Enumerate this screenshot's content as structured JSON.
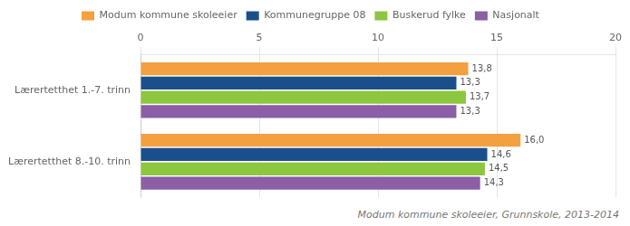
{
  "chart_data": {
    "type": "bar",
    "orientation": "horizontal",
    "categories": [
      "Lærertetthet 1.-7. trinn",
      "Lærertetthet 8.-10. trinn"
    ],
    "series": [
      {
        "name": "Modum kommune skoleeier",
        "color": "#F4A040",
        "values": [
          13.8,
          16.0
        ],
        "value_labels": [
          "13,8",
          "16,0"
        ]
      },
      {
        "name": "Kommunegruppe 08",
        "color": "#1B4F8C",
        "values": [
          13.3,
          14.6
        ],
        "value_labels": [
          "13,3",
          "14,6"
        ]
      },
      {
        "name": "Buskerud fylke",
        "color": "#8DC63F",
        "values": [
          13.7,
          14.5
        ],
        "value_labels": [
          "13,7",
          "14,5"
        ]
      },
      {
        "name": "Nasjonalt",
        "color": "#8B5EA6",
        "values": [
          13.3,
          14.3
        ],
        "value_labels": [
          "13,3",
          "14,3"
        ]
      }
    ],
    "xlim": [
      0,
      20
    ],
    "xticks": [
      0,
      5,
      10,
      15,
      20
    ],
    "grid": true,
    "legend": "top",
    "data_labels": true,
    "footnote": "Modum kommune skoleeier, Grunnskole, 2013-2014"
  }
}
